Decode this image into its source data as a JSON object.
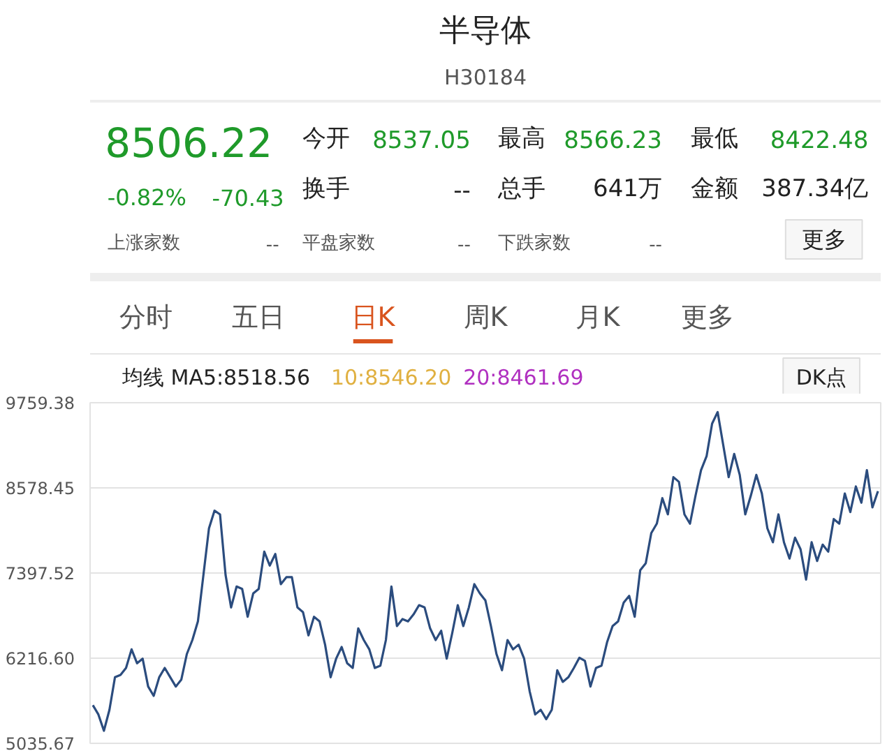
{
  "chart_data": {
    "type": "line",
    "title": "半导体",
    "subtitle": "H30184",
    "annotations": [
      "8506.22",
      "-0.82%",
      "-70.43",
      "今开",
      "8537.05",
      "最高",
      "8566.23",
      "最低",
      "8422.48",
      "换手",
      "--",
      "总手",
      "641万",
      "金额",
      "387.34亿",
      "上涨家数",
      "--",
      "平盘家数",
      "--",
      "下跌家数",
      "--",
      "更多",
      "分时",
      "五日",
      "日K",
      "周K",
      "月K",
      "更多",
      "均线 MA5:8518.56",
      "10:8546.20",
      "20:8461.69",
      "DK点"
    ],
    "categories": [
      null,
      null,
      null,
      null,
      null,
      null,
      null,
      null,
      null,
      null,
      null,
      null,
      null,
      null,
      null,
      null,
      null,
      null,
      null,
      null,
      null,
      null,
      null,
      null,
      null,
      null,
      null,
      null,
      null,
      null,
      null,
      null,
      null,
      null,
      null,
      null,
      null,
      null,
      null,
      null,
      null,
      null,
      null,
      null,
      null,
      null,
      null,
      null,
      null,
      null,
      null,
      null,
      null,
      null,
      null,
      null,
      null,
      null,
      null,
      null,
      null,
      null,
      null,
      null,
      null,
      null,
      null,
      null,
      null,
      null,
      null,
      null,
      null,
      null,
      null,
      null,
      null,
      null,
      null,
      null,
      null,
      null,
      null,
      null,
      null,
      null,
      null,
      null,
      null,
      null,
      null,
      null,
      null,
      null,
      null,
      null,
      null,
      null,
      null,
      null,
      null,
      null,
      null,
      null,
      null,
      null,
      null,
      null,
      null,
      null,
      null,
      null,
      null,
      null,
      null,
      null,
      null,
      null,
      null,
      null,
      null,
      null,
      null,
      null,
      null,
      null,
      null,
      null,
      null,
      null,
      null,
      null,
      null,
      null,
      null,
      null,
      null,
      null,
      null,
      null,
      null,
      null,
      null
    ],
    "series": [
      {
        "color": "#2b4c7e",
        "values": [
          5565,
          5436,
          5210,
          5500,
          5952,
          5985,
          6081,
          6339,
          6146,
          6210,
          5823,
          5694,
          5952,
          6081,
          5952,
          5823,
          5920,
          6275,
          6468,
          6727,
          7372,
          8017,
          8262,
          8211,
          7372,
          6920,
          7211,
          7178,
          6791,
          7114,
          7178,
          7694,
          7501,
          7662,
          7243,
          7340,
          7340,
          6920,
          6856,
          6533,
          6791,
          6727,
          6404,
          5952,
          6210,
          6372,
          6146,
          6081,
          6630,
          6468,
          6339,
          6081,
          6113,
          6468,
          7211,
          6662,
          6759,
          6727,
          6823,
          6952,
          6920,
          6630,
          6468,
          6597,
          6210,
          6565,
          6952,
          6662,
          6920,
          7243,
          7114,
          7017,
          6662,
          6275,
          6049,
          6468,
          6339,
          6404,
          6210,
          5759,
          5436,
          5500,
          5371,
          5500,
          6049,
          5888,
          5952,
          6081,
          6223,
          6178,
          5823,
          6081,
          6113,
          6436,
          6662,
          6727,
          6985,
          7081,
          6791,
          7436,
          7533,
          7952,
          8082,
          8436,
          8211,
          8727,
          8662,
          8211,
          8082,
          8469,
          8824,
          9017,
          9469,
          9630,
          9179,
          8727,
          9050,
          8759,
          8211,
          8469,
          8759,
          8501,
          8017,
          7824,
          8211,
          7824,
          7598,
          7888,
          7727,
          7307,
          7824,
          7565,
          7791,
          7694,
          8146,
          8082,
          8501,
          8243,
          8598,
          8372,
          8824,
          8308,
          8533
        ]
      }
    ],
    "ylim": [
      5035.67,
      9759.38
    ],
    "yticks": [
      5035.67,
      {
        "value": 6216.6,
        "label": "6216.60"
      },
      7397.52,
      8578.45,
      9759.38
    ],
    "grid": "y",
    "line_style": "solid",
    "marker": "none"
  }
}
